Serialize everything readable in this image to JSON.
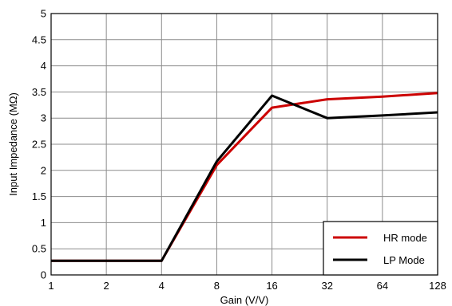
{
  "chart_data": {
    "type": "line",
    "title": "",
    "xlabel": "Gain (V/V)",
    "ylabel": "Input Impedance (MΩ)",
    "x_scale": "log2",
    "x": [
      1,
      2,
      4,
      8,
      16,
      32,
      64,
      128
    ],
    "x_tick_labels": [
      "1",
      "2",
      "4",
      "8",
      "16",
      "32",
      "64",
      "128"
    ],
    "ylim": [
      0,
      5
    ],
    "y_ticks": [
      0,
      0.5,
      1,
      1.5,
      2,
      2.5,
      3,
      3.5,
      4,
      4.5,
      5
    ],
    "y_tick_labels": [
      "0",
      "0.5",
      "1",
      "1.5",
      "2",
      "2.5",
      "3",
      "3.5",
      "4",
      "4.5",
      "5"
    ],
    "grid": true,
    "legend_position": "bottom-right",
    "series": [
      {
        "name": "HR mode",
        "color": "#cc0000",
        "values": [
          0.27,
          0.27,
          0.27,
          2.1,
          3.2,
          3.36,
          3.41,
          3.48
        ]
      },
      {
        "name": "LP Mode",
        "color": "#000000",
        "values": [
          0.27,
          0.27,
          0.27,
          2.17,
          3.43,
          3.0,
          3.05,
          3.11
        ]
      }
    ]
  }
}
